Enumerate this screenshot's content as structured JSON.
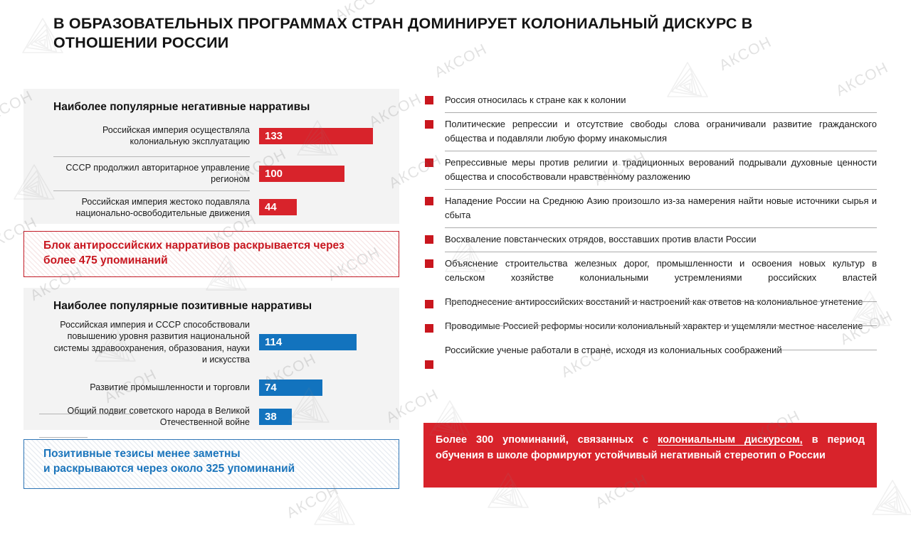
{
  "slide": {
    "title": "В ОБРАЗОВАТЕЛЬНЫХ ПРОГРАММАХ СТРАН ДОМИНИРУЕТ КОЛОНИАЛЬНЫЙ ДИСКУРС В\nОТНОШЕНИИ РОССИИ"
  },
  "watermark": {
    "label": "АКСОН"
  },
  "colors": {
    "negative_red": "#d8232b",
    "positive_blue": "#1273be",
    "callout_red_text": "#c8161f",
    "callout_blue_text": "#1b75bc",
    "bullet_red": "#c9161e",
    "panel_gray": "#f3f3f3"
  },
  "chart_data": [
    {
      "type": "bar",
      "orientation": "horizontal",
      "title": "Наиболее популярные негативные нарративы",
      "bar_color": "#d8232b",
      "categories": [
        "Российская империя осуществляла колониальную эксплуатацию",
        "СССР продолжил авторитарное управление регионом",
        "Российская империя жестоко подавляла национально-освободительные движения"
      ],
      "values": [
        133,
        100,
        44
      ],
      "xlim": [
        0,
        140
      ],
      "grid": false,
      "value_labels": "inside-left"
    },
    {
      "type": "bar",
      "orientation": "horizontal",
      "title": "Наиболее популярные позитивные нарративы",
      "bar_color": "#1273be",
      "categories": [
        "Российская империя и СССР способствовали повышению уровня развития национальной системы здравоохранения, образования, науки и искусства",
        "Развитие промышленности и торговли",
        "Общий подвиг советского народа в Великой Отечественной войне"
      ],
      "values": [
        114,
        74,
        38
      ],
      "xlim": [
        0,
        140
      ],
      "grid": false,
      "value_labels": "inside-left"
    }
  ],
  "callouts": {
    "negative": {
      "text": "Блок антироссийских нарративов раскрывается через\nболее 475 упоминаний"
    },
    "positive": {
      "text": "Позитивные тезисы менее заметны\nи раскрываются через около 325 упоминаний"
    }
  },
  "right_list": {
    "items": [
      {
        "text": "Россия относилась к стране как к колонии"
      },
      {
        "text": "Политические репрессии и отсутствие свободы слова ограничивали развитие гражданского общества и подавляли любую форму инакомыслия"
      },
      {
        "text": "Репрессивные меры против религии и традиционных верований подрывали духовные ценности общества и способствовали нравственному разложению"
      },
      {
        "text": "Нападение России на Среднюю Азию произошло из-за намерения найти новые источники сырья и сбыта"
      },
      {
        "text": "Восхваление повстанческих отрядов, восставших против власти России"
      },
      {
        "text": "Объяснение строительства железных дорог, промышленности и освоения новых культур в сельском хозяйстве колониальными устремлениями российских властей"
      },
      {
        "text": "Преподнесение антироссийских восстаний и настроений как ответов на колониальное угнетение"
      },
      {
        "text": "Проводимые Россией реформы носили колониальный характер и ущемляли местное население"
      },
      {
        "text": "Российские ученые работали в стране, исходя из колониальных соображений"
      }
    ]
  },
  "banner": {
    "prefix": "Более 300 упоминаний, связанных с ",
    "underlined": "колониальным дискурсом,",
    "suffix": " в период обучения в школе формируют устойчивый негативный стереотип о России"
  }
}
